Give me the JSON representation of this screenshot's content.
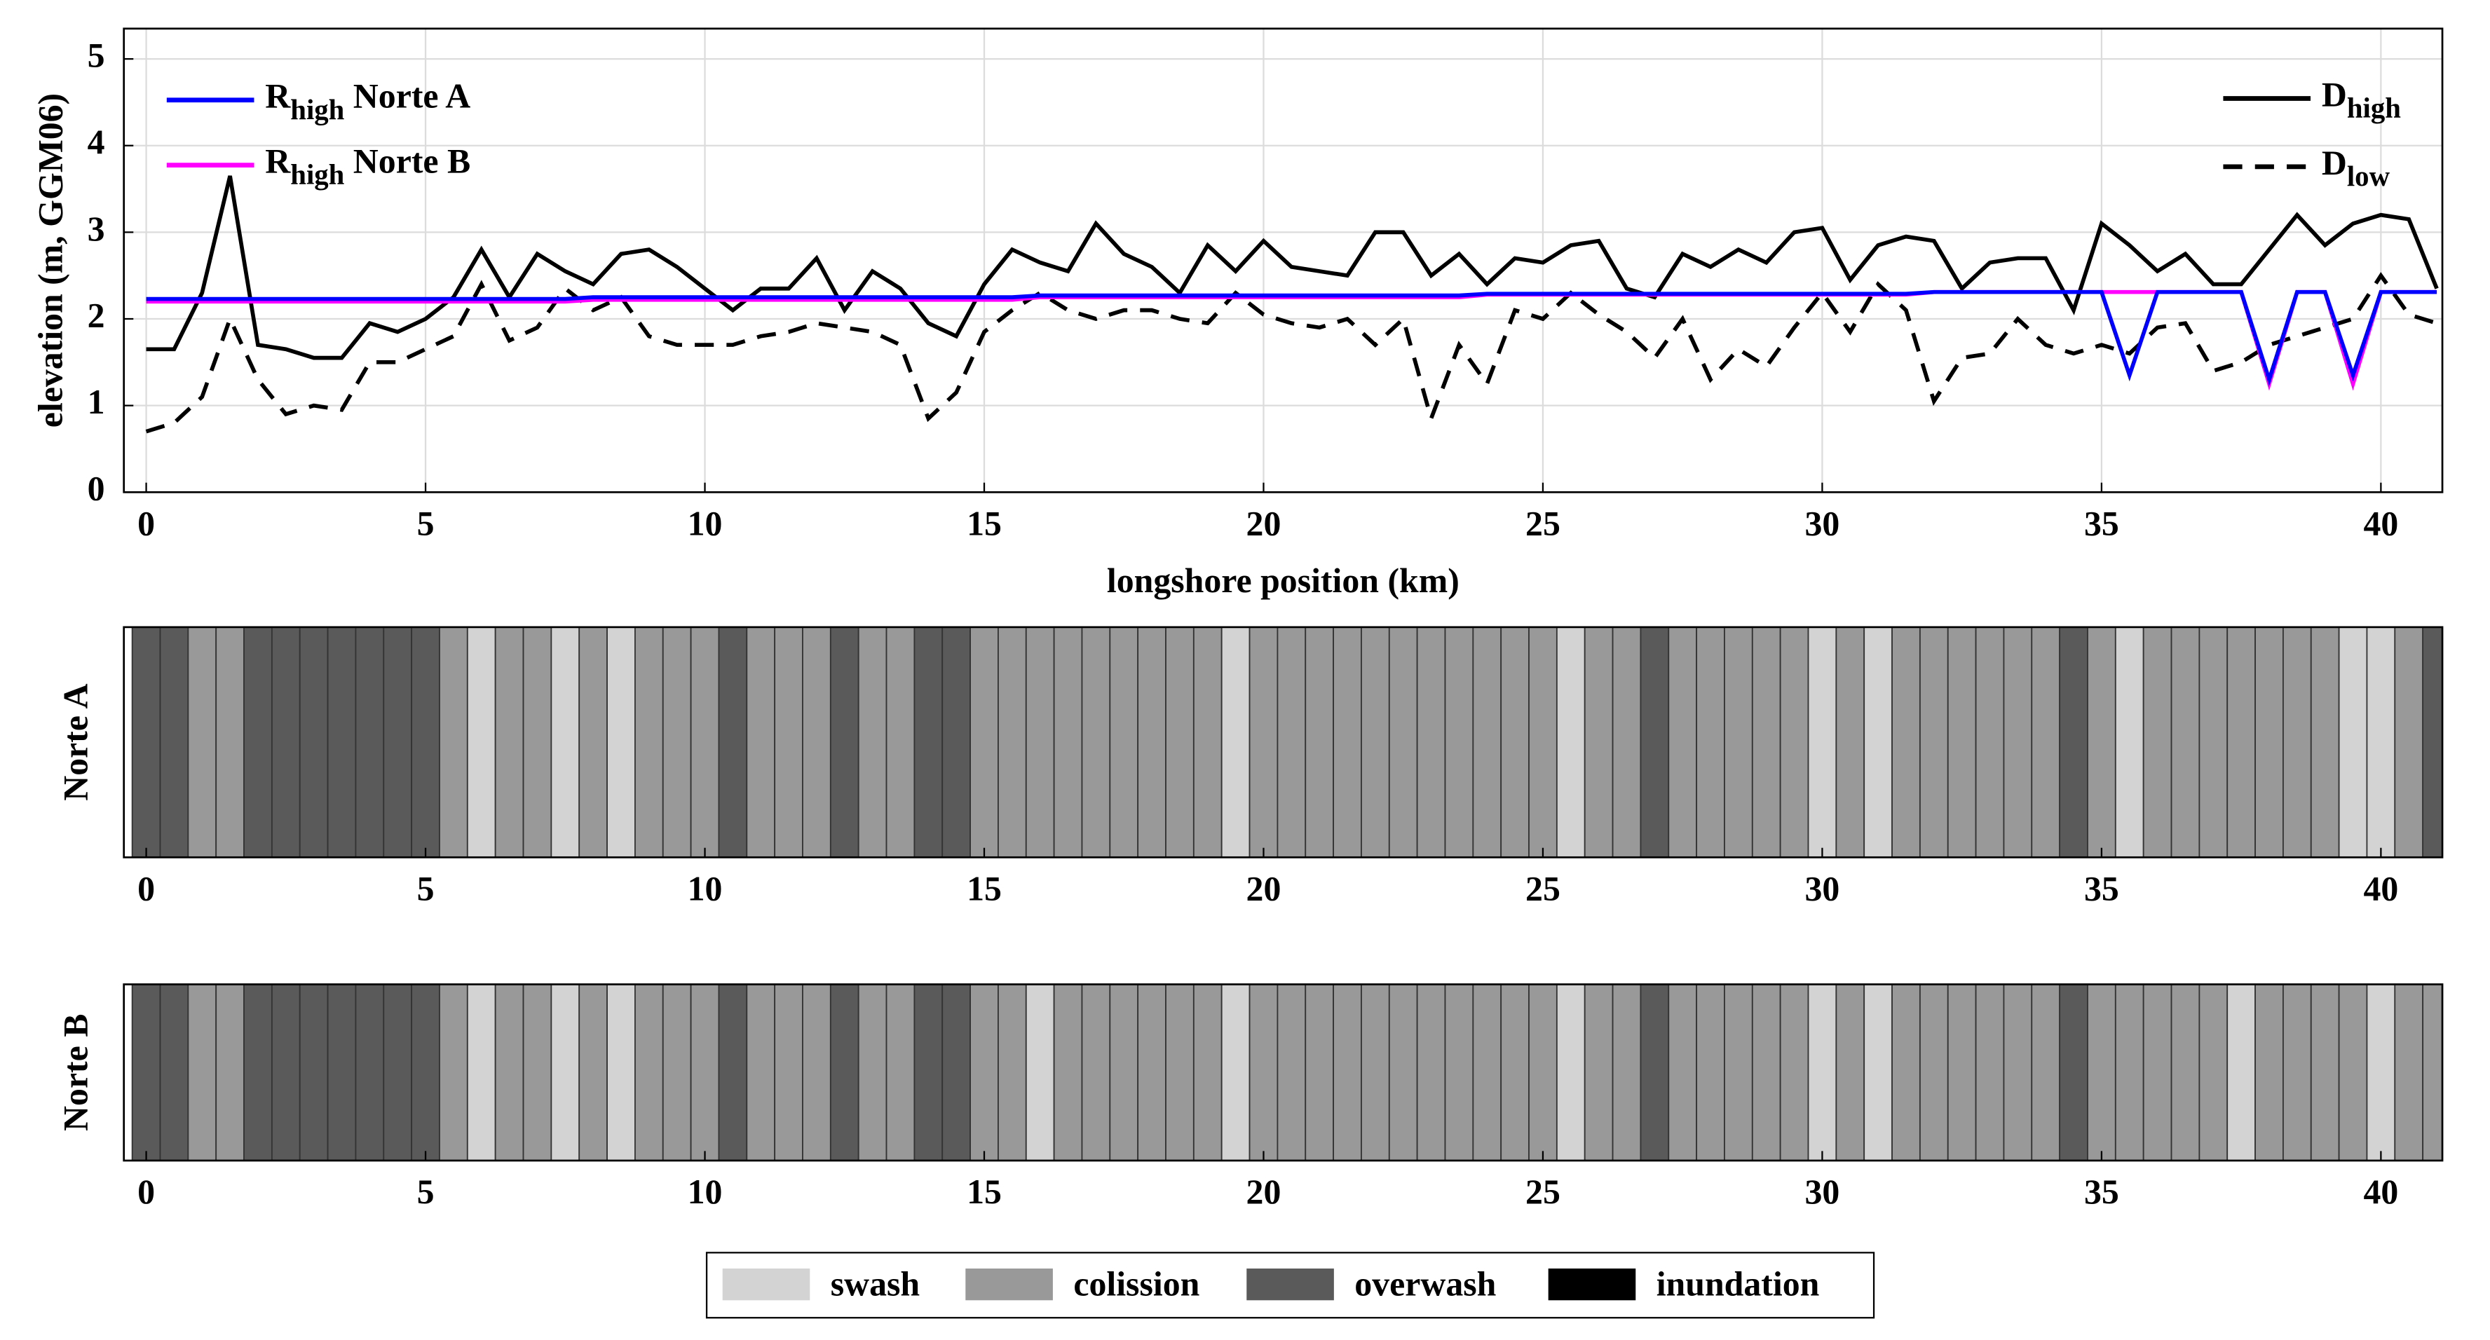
{
  "chart_data": [
    {
      "type": "line",
      "xlabel": "longshore position (km)",
      "ylabel": "elevation (m, GGM06)",
      "xlim": [
        -0.4,
        41.1
      ],
      "ylim": [
        0,
        5.35
      ],
      "xticks": [
        0,
        5,
        10,
        15,
        20,
        25,
        30,
        35,
        40
      ],
      "yticks": [
        0,
        1,
        2,
        3,
        4,
        5
      ],
      "grid": true,
      "x": [
        0,
        0.5,
        1,
        1.5,
        2,
        2.5,
        3,
        3.5,
        4,
        4.5,
        5,
        5.5,
        6,
        6.5,
        7,
        7.5,
        8,
        8.5,
        9,
        9.5,
        10,
        10.5,
        11,
        11.5,
        12,
        12.5,
        13,
        13.5,
        14,
        14.5,
        15,
        15.5,
        16,
        16.5,
        17,
        17.5,
        18,
        18.5,
        19,
        19.5,
        20,
        20.5,
        21,
        21.5,
        22,
        22.5,
        23,
        23.5,
        24,
        24.5,
        25,
        25.5,
        26,
        26.5,
        27,
        27.5,
        28,
        28.5,
        29,
        29.5,
        30,
        30.5,
        31,
        31.5,
        32,
        32.5,
        33,
        33.5,
        34,
        34.5,
        35,
        35.5,
        36,
        36.5,
        37,
        37.5,
        38,
        38.5,
        39,
        39.5,
        40,
        40.5,
        41
      ],
      "series": [
        {
          "name": {
            "base": "D",
            "sub": "high"
          },
          "color": "#000000",
          "style": "solid",
          "legend": "upper right",
          "values": [
            1.65,
            1.65,
            2.3,
            3.65,
            1.7,
            1.65,
            1.55,
            1.55,
            1.95,
            1.85,
            2.0,
            2.25,
            2.8,
            2.25,
            2.75,
            2.55,
            2.4,
            2.75,
            2.8,
            2.6,
            2.35,
            2.1,
            2.35,
            2.35,
            2.7,
            2.1,
            2.55,
            2.35,
            1.95,
            1.8,
            2.4,
            2.8,
            2.65,
            2.55,
            3.1,
            2.75,
            2.6,
            2.3,
            2.85,
            2.55,
            2.9,
            2.6,
            2.55,
            2.5,
            3.0,
            3.0,
            2.5,
            2.75,
            2.4,
            2.7,
            2.65,
            2.85,
            2.9,
            2.35,
            2.25,
            2.75,
            2.6,
            2.8,
            2.65,
            3.0,
            3.05,
            2.45,
            2.85,
            2.95,
            2.9,
            2.35,
            2.65,
            2.7,
            2.7,
            2.1,
            3.1,
            2.85,
            2.55,
            2.75,
            2.4,
            2.4,
            2.8,
            3.2,
            2.85,
            3.1,
            3.2,
            3.15,
            2.35
          ]
        },
        {
          "name": {
            "base": "D",
            "sub": "low"
          },
          "color": "#000000",
          "style": "dashed",
          "legend": "upper right",
          "values": [
            0.7,
            0.8,
            1.1,
            2.0,
            1.3,
            0.9,
            1.0,
            0.95,
            1.5,
            1.5,
            1.65,
            1.8,
            2.4,
            1.75,
            1.9,
            2.35,
            2.1,
            2.25,
            1.8,
            1.7,
            1.7,
            1.7,
            1.8,
            1.85,
            1.95,
            1.9,
            1.85,
            1.7,
            0.85,
            1.15,
            1.85,
            2.1,
            2.3,
            2.1,
            2.0,
            2.1,
            2.1,
            2.0,
            1.95,
            2.3,
            2.05,
            1.95,
            1.9,
            2.0,
            1.7,
            2.0,
            0.85,
            1.7,
            1.25,
            2.1,
            2.0,
            2.3,
            2.05,
            1.85,
            1.55,
            2.0,
            1.3,
            1.65,
            1.45,
            1.9,
            2.3,
            1.85,
            2.4,
            2.1,
            1.05,
            1.55,
            1.6,
            2.0,
            1.7,
            1.6,
            1.7,
            1.6,
            1.9,
            1.95,
            1.4,
            1.5,
            1.7,
            1.8,
            1.9,
            2.0,
            2.5,
            2.05,
            1.95
          ]
        },
        {
          "name": {
            "base": "R",
            "sub": "high",
            "rest": " Norte A"
          },
          "color": "#0000ff",
          "style": "solid",
          "legend": "upper left",
          "values": [
            2.23,
            2.23,
            2.23,
            2.23,
            2.23,
            2.23,
            2.23,
            2.23,
            2.23,
            2.23,
            2.23,
            2.23,
            2.23,
            2.23,
            2.23,
            2.23,
            2.25,
            2.25,
            2.25,
            2.25,
            2.25,
            2.25,
            2.25,
            2.25,
            2.25,
            2.25,
            2.25,
            2.25,
            2.25,
            2.25,
            2.25,
            2.25,
            2.27,
            2.27,
            2.27,
            2.27,
            2.27,
            2.27,
            2.27,
            2.27,
            2.27,
            2.27,
            2.27,
            2.27,
            2.27,
            2.27,
            2.27,
            2.27,
            2.29,
            2.29,
            2.29,
            2.29,
            2.29,
            2.29,
            2.29,
            2.29,
            2.29,
            2.29,
            2.29,
            2.29,
            2.29,
            2.29,
            2.29,
            2.29,
            2.31,
            2.31,
            2.31,
            2.31,
            2.31,
            2.31,
            2.31,
            1.35,
            2.31,
            2.31,
            2.31,
            2.31,
            1.3,
            2.31,
            2.31,
            1.35,
            2.31,
            2.31,
            2.31
          ]
        },
        {
          "name": {
            "base": "R",
            "sub": "high",
            "rest": " Norte B"
          },
          "color": "#ff00ff",
          "style": "solid",
          "legend": "upper left",
          "values": [
            2.2,
            2.2,
            2.2,
            2.2,
            2.2,
            2.2,
            2.2,
            2.2,
            2.2,
            2.2,
            2.2,
            2.2,
            2.2,
            2.2,
            2.2,
            2.2,
            2.22,
            2.22,
            2.22,
            2.22,
            2.22,
            2.22,
            2.22,
            2.22,
            2.22,
            2.22,
            2.22,
            2.22,
            2.22,
            2.22,
            2.22,
            2.22,
            2.25,
            2.25,
            2.25,
            2.25,
            2.25,
            2.25,
            2.25,
            2.25,
            2.25,
            2.25,
            2.25,
            2.25,
            2.25,
            2.25,
            2.25,
            2.25,
            2.28,
            2.28,
            2.28,
            2.28,
            2.28,
            2.28,
            2.28,
            2.28,
            2.28,
            2.28,
            2.28,
            2.28,
            2.28,
            2.28,
            2.28,
            2.28,
            2.31,
            2.31,
            2.31,
            2.31,
            2.31,
            2.31,
            2.31,
            2.31,
            2.31,
            2.31,
            2.31,
            2.31,
            1.25,
            2.31,
            2.31,
            1.25,
            2.31,
            2.31,
            2.31
          ]
        }
      ]
    },
    {
      "type": "strip",
      "ylabel": "Norte A",
      "xlim": [
        -0.4,
        41.1
      ],
      "xticks": [
        0,
        5,
        10,
        15,
        20,
        25,
        30,
        35,
        40
      ],
      "x": [
        0,
        0.5,
        1,
        1.5,
        2,
        2.5,
        3,
        3.5,
        4,
        4.5,
        5,
        5.5,
        6,
        6.5,
        7,
        7.5,
        8,
        8.5,
        9,
        9.5,
        10,
        10.5,
        11,
        11.5,
        12,
        12.5,
        13,
        13.5,
        14,
        14.5,
        15,
        15.5,
        16,
        16.5,
        17,
        17.5,
        18,
        18.5,
        19,
        19.5,
        20,
        20.5,
        21,
        21.5,
        22,
        22.5,
        23,
        23.5,
        24,
        24.5,
        25,
        25.5,
        26,
        26.5,
        27,
        27.5,
        28,
        28.5,
        29,
        29.5,
        30,
        30.5,
        31,
        31.5,
        32,
        32.5,
        33,
        33.5,
        34,
        34.5,
        35,
        35.5,
        36,
        36.5,
        37,
        37.5,
        38,
        38.5,
        39,
        39.5,
        40,
        40.5,
        41
      ],
      "values": [
        "overwash",
        "overwash",
        "colission",
        "colission",
        "overwash",
        "overwash",
        "overwash",
        "overwash",
        "overwash",
        "overwash",
        "overwash",
        "colission",
        "swash",
        "colission",
        "colission",
        "swash",
        "colission",
        "swash",
        "colission",
        "colission",
        "colission",
        "overwash",
        "colission",
        "colission",
        "colission",
        "overwash",
        "colission",
        "colission",
        "overwash",
        "overwash",
        "colission",
        "colission",
        "colission",
        "colission",
        "colission",
        "colission",
        "colission",
        "colission",
        "colission",
        "swash",
        "colission",
        "colission",
        "colission",
        "colission",
        "colission",
        "colission",
        "colission",
        "colission",
        "colission",
        "colission",
        "colission",
        "swash",
        "colission",
        "colission",
        "overwash",
        "colission",
        "colission",
        "colission",
        "colission",
        "colission",
        "swash",
        "colission",
        "swash",
        "colission",
        "colission",
        "colission",
        "colission",
        "colission",
        "colission",
        "overwash",
        "colission",
        "swash",
        "colission",
        "colission",
        "colission",
        "colission",
        "colission",
        "colission",
        "colission",
        "swash",
        "swash",
        "colission",
        "overwash"
      ]
    },
    {
      "type": "strip",
      "ylabel": "Norte B",
      "xlim": [
        -0.4,
        41.1
      ],
      "xticks": [
        0,
        5,
        10,
        15,
        20,
        25,
        30,
        35,
        40
      ],
      "x": [
        0,
        0.5,
        1,
        1.5,
        2,
        2.5,
        3,
        3.5,
        4,
        4.5,
        5,
        5.5,
        6,
        6.5,
        7,
        7.5,
        8,
        8.5,
        9,
        9.5,
        10,
        10.5,
        11,
        11.5,
        12,
        12.5,
        13,
        13.5,
        14,
        14.5,
        15,
        15.5,
        16,
        16.5,
        17,
        17.5,
        18,
        18.5,
        19,
        19.5,
        20,
        20.5,
        21,
        21.5,
        22,
        22.5,
        23,
        23.5,
        24,
        24.5,
        25,
        25.5,
        26,
        26.5,
        27,
        27.5,
        28,
        28.5,
        29,
        29.5,
        30,
        30.5,
        31,
        31.5,
        32,
        32.5,
        33,
        33.5,
        34,
        34.5,
        35,
        35.5,
        36,
        36.5,
        37,
        37.5,
        38,
        38.5,
        39,
        39.5,
        40,
        40.5,
        41
      ],
      "values": [
        "overwash",
        "overwash",
        "colission",
        "colission",
        "overwash",
        "overwash",
        "overwash",
        "overwash",
        "overwash",
        "overwash",
        "overwash",
        "colission",
        "swash",
        "colission",
        "colission",
        "swash",
        "colission",
        "swash",
        "colission",
        "colission",
        "colission",
        "overwash",
        "colission",
        "colission",
        "colission",
        "overwash",
        "colission",
        "colission",
        "overwash",
        "overwash",
        "colission",
        "colission",
        "swash",
        "colission",
        "colission",
        "colission",
        "colission",
        "colission",
        "colission",
        "swash",
        "colission",
        "colission",
        "colission",
        "colission",
        "colission",
        "colission",
        "colission",
        "colission",
        "colission",
        "colission",
        "colission",
        "swash",
        "colission",
        "colission",
        "overwash",
        "colission",
        "colission",
        "colission",
        "colission",
        "colission",
        "swash",
        "colission",
        "swash",
        "colission",
        "colission",
        "colission",
        "colission",
        "colission",
        "colission",
        "overwash",
        "colission",
        "colission",
        "colission",
        "colission",
        "colission",
        "swash",
        "colission",
        "colission",
        "colission",
        "colission",
        "swash",
        "colission",
        "colission"
      ]
    }
  ],
  "regime_legend": [
    {
      "name": "swash",
      "color": "#d3d3d3"
    },
    {
      "name": "colission",
      "color": "#999999"
    },
    {
      "name": "overwash",
      "color": "#5a5a5a"
    },
    {
      "name": "inundation",
      "color": "#000000"
    }
  ]
}
